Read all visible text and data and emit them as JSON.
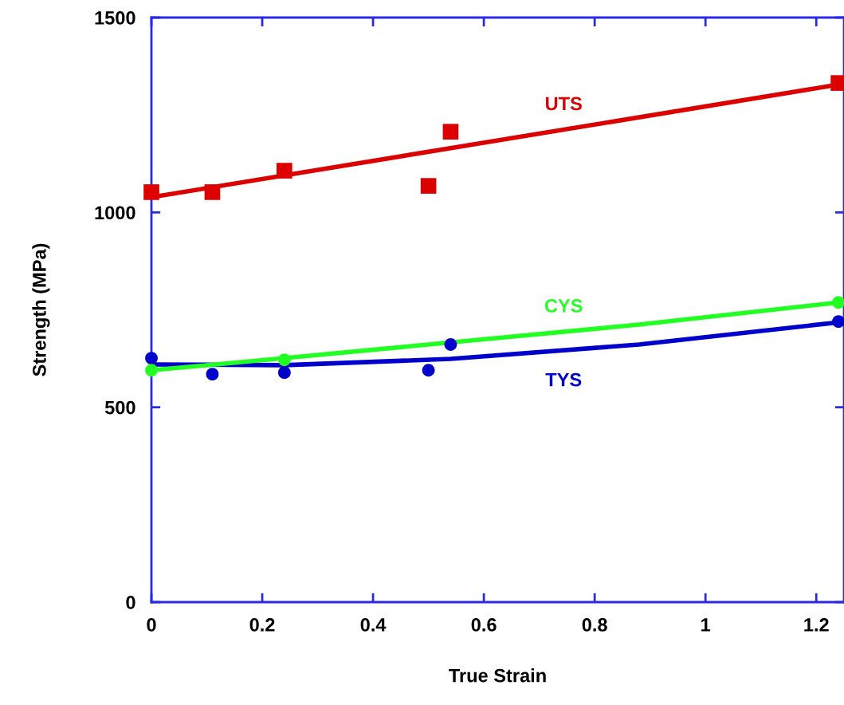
{
  "chart_data": {
    "type": "scatter",
    "xlabel": "True Strain",
    "ylabel": "Strength (MPa)",
    "xlim": [
      0,
      1.25
    ],
    "ylim": [
      0,
      1500
    ],
    "xticks": [
      0,
      0.2,
      0.4,
      0.6,
      0.8,
      1,
      1.2
    ],
    "yticks": [
      0,
      500,
      1000,
      1500
    ],
    "grid": false,
    "legend": false,
    "series": [
      {
        "marker": "square",
        "color": "#dd0000",
        "x": [
          0,
          0.11,
          0.24,
          0.5,
          0.54,
          1.24
        ],
        "values": [
          1052,
          1052,
          1107,
          1068,
          1207,
          1332
        ]
      },
      {
        "type": "line",
        "name": "UTS",
        "color": "#dd0000",
        "marker": "none",
        "x": [
          0,
          1.24
        ],
        "values": [
          1039,
          1328
        ]
      },
      {
        "marker": "circle",
        "color": "#0000cc",
        "x": [
          0,
          0.11,
          0.24,
          0.5,
          0.54,
          1.24
        ],
        "values": [
          626,
          585,
          589,
          595,
          661,
          720
        ]
      },
      {
        "type": "line",
        "name": "TYS",
        "color": "#0000cc",
        "marker": "none",
        "x": [
          0,
          0.24,
          0.54,
          0.88,
          1.24
        ],
        "values": [
          610,
          608,
          624,
          661,
          718
        ]
      },
      {
        "marker": "circle",
        "color": "#22ff22",
        "x": [
          0,
          0.24,
          1.24
        ],
        "values": [
          595,
          622,
          769
        ]
      },
      {
        "type": "line",
        "name": "CYS",
        "color": "#22ff22",
        "marker": "none",
        "x": [
          0,
          0.24,
          0.88,
          1.24
        ],
        "values": [
          595,
          626,
          712,
          769
        ]
      }
    ]
  }
}
